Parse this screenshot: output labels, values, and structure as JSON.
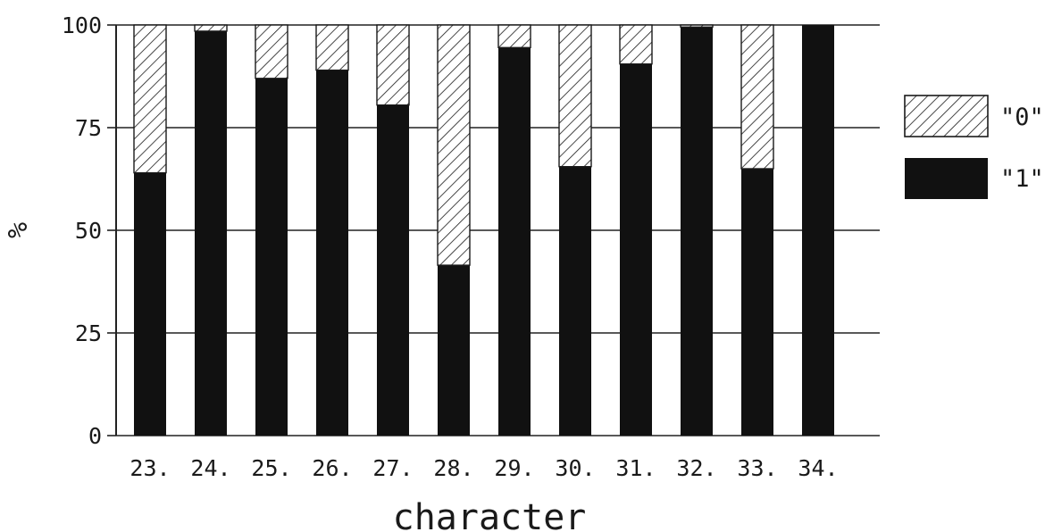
{
  "chart_data": {
    "type": "bar",
    "stacked": true,
    "percent_stacked": true,
    "title": "",
    "xlabel": "character",
    "ylabel": "%",
    "ylim": [
      0,
      100
    ],
    "yticks": [
      "0",
      "25",
      "50",
      "75",
      "100"
    ],
    "grid": "horizontal",
    "legend_position": "right",
    "categories": [
      "23.",
      "24.",
      "25.",
      "26.",
      "27.",
      "28.",
      "29.",
      "30.",
      "31.",
      "32.",
      "33.",
      "34."
    ],
    "series": [
      {
        "name": "\"1\"",
        "fill": "solid",
        "color": "#111111",
        "values": [
          64,
          98.5,
          87,
          89,
          80.5,
          41.5,
          94.5,
          65.5,
          90.5,
          99.5,
          65,
          100
        ]
      },
      {
        "name": "\"0\"",
        "fill": "hatched",
        "color": "#ffffff",
        "values": [
          36,
          1.5,
          13,
          11,
          19.5,
          58.5,
          5.5,
          34.5,
          9.5,
          0.5,
          35,
          0
        ]
      }
    ]
  }
}
